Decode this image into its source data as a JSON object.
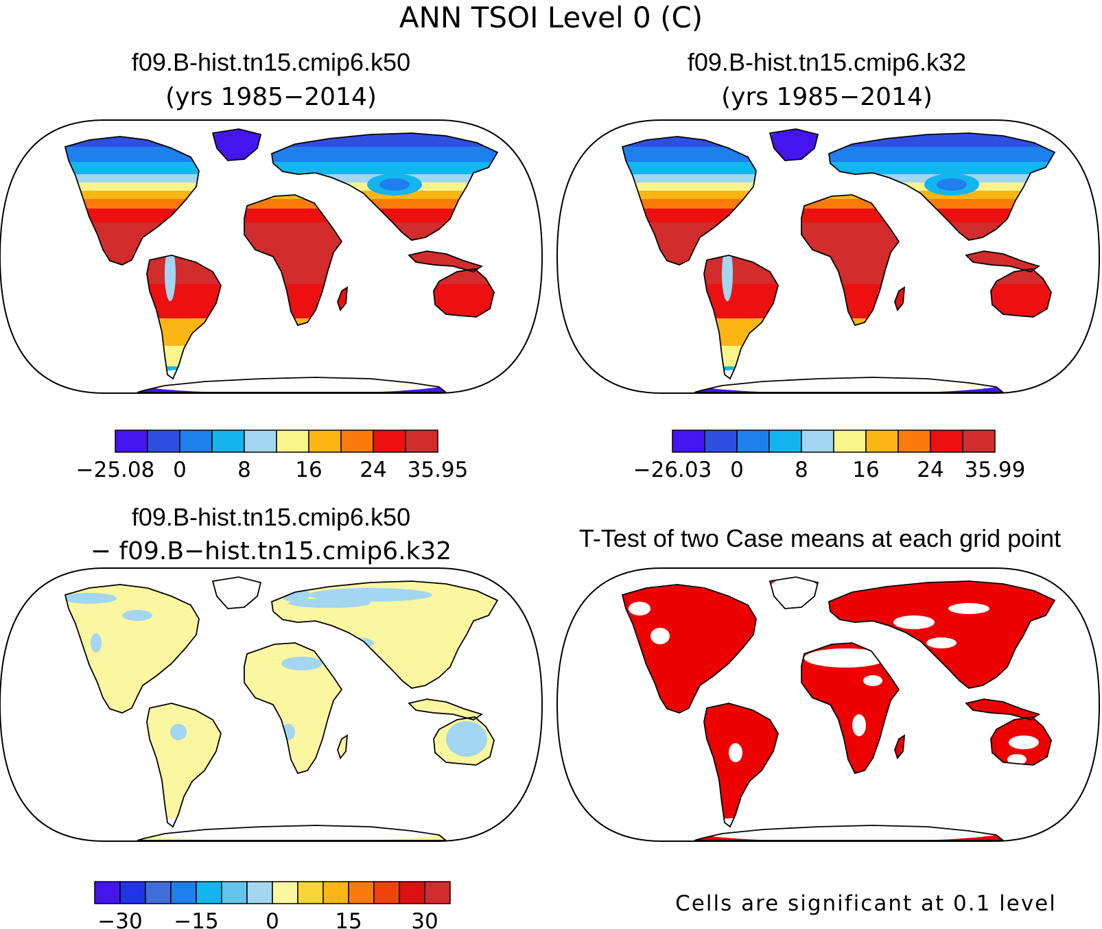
{
  "figure": {
    "title": "ANN TSOI Level 0 (C)",
    "colors": {
      "outline": "#000000",
      "ocean": "#ffffff",
      "significant": "#ee0000",
      "palette_abs": [
        "#4515f0",
        "#2f4fe0",
        "#1e7fee",
        "#12b6ef",
        "#a3d6f0",
        "#fbf48a",
        "#fbb614",
        "#fb7a0c",
        "#ec1010",
        "#d22c2c"
      ],
      "palette_diff": [
        "#4515f0",
        "#2035e8",
        "#3e6fd8",
        "#1e7fee",
        "#12b6ef",
        "#61c5ec",
        "#a3d6f0",
        "#fbf6a0",
        "#fbd435",
        "#fbb614",
        "#fb7a0c",
        "#f2420c",
        "#e01010",
        "#d22c2c"
      ]
    }
  },
  "panels": [
    {
      "id": "case1",
      "title": "f09.B-hist.tn15.cmip6.k50",
      "subtitle": "(yrs 1985−2014)",
      "colorbar": {
        "min_label": "−25.08",
        "ticks": [
          "0",
          "8",
          "16",
          "24"
        ],
        "max_label": "35.95",
        "levels": [
          -25.08,
          0,
          4,
          8,
          12,
          16,
          20,
          24,
          28,
          32,
          35.95
        ]
      }
    },
    {
      "id": "case2",
      "title": "f09.B-hist.tn15.cmip6.k32",
      "subtitle": "(yrs 1985−2014)",
      "colorbar": {
        "min_label": "−26.03",
        "ticks": [
          "0",
          "8",
          "16",
          "24"
        ],
        "max_label": "35.99",
        "levels": [
          -26.03,
          0,
          4,
          8,
          12,
          16,
          20,
          24,
          28,
          32,
          35.99
        ]
      }
    },
    {
      "id": "difference",
      "title": "f09.B-hist.tn15.cmip6.k50",
      "subtitle": "− f09.B−hist.tn15.cmip6.k32",
      "colorbar": {
        "ticks": [
          "−30",
          "−15",
          "0",
          "15",
          "30"
        ],
        "levels": [
          -35,
          -30,
          -25,
          -20,
          -15,
          -10,
          -5,
          0,
          5,
          10,
          15,
          20,
          25,
          30,
          35
        ]
      }
    },
    {
      "id": "ttest",
      "title": "T-Test of two Case means at each grid point",
      "note": "Cells are significant at 0.1 level"
    }
  ]
}
